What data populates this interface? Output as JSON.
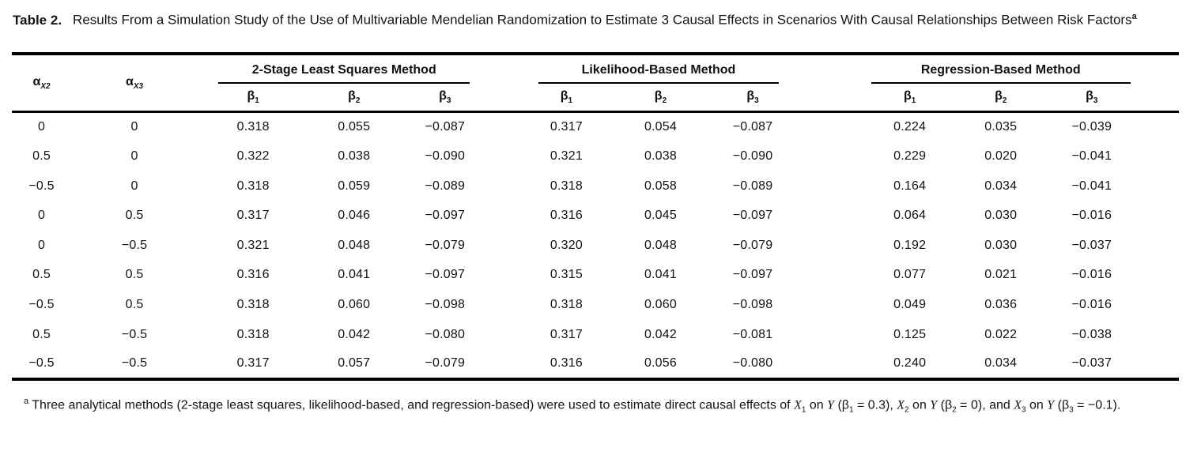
{
  "title": {
    "label": "Table 2.",
    "text": "Results From a Simulation Study of the Use of Multivariable Mendelian Randomization to Estimate 3 Causal Effects in Scenarios With Causal Relationships Between Risk Factors",
    "superscript": "a"
  },
  "header": {
    "alpha_x2": {
      "base": "α",
      "sub": "X2"
    },
    "alpha_x3": {
      "base": "α",
      "sub": "X3"
    },
    "groups": [
      {
        "label": "2-Stage Least Squares Method"
      },
      {
        "label": "Likelihood-Based Method"
      },
      {
        "label": "Regression-Based Method"
      }
    ],
    "betas": [
      {
        "base": "β",
        "sub": "1"
      },
      {
        "base": "β",
        "sub": "2"
      },
      {
        "base": "β",
        "sub": "3"
      }
    ]
  },
  "rows": [
    [
      "0",
      "0",
      "0.318",
      "0.055",
      "−0.087",
      "0.317",
      "0.054",
      "−0.087",
      "0.224",
      "0.035",
      "−0.039"
    ],
    [
      "0.5",
      "0",
      "0.322",
      "0.038",
      "−0.090",
      "0.321",
      "0.038",
      "−0.090",
      "0.229",
      "0.020",
      "−0.041"
    ],
    [
      "−0.5",
      "0",
      "0.318",
      "0.059",
      "−0.089",
      "0.318",
      "0.058",
      "−0.089",
      "0.164",
      "0.034",
      "−0.041"
    ],
    [
      "0",
      "0.5",
      "0.317",
      "0.046",
      "−0.097",
      "0.316",
      "0.045",
      "−0.097",
      "0.064",
      "0.030",
      "−0.016"
    ],
    [
      "0",
      "−0.5",
      "0.321",
      "0.048",
      "−0.079",
      "0.320",
      "0.048",
      "−0.079",
      "0.192",
      "0.030",
      "−0.037"
    ],
    [
      "0.5",
      "0.5",
      "0.316",
      "0.041",
      "−0.097",
      "0.315",
      "0.041",
      "−0.097",
      "0.077",
      "0.021",
      "−0.016"
    ],
    [
      "−0.5",
      "0.5",
      "0.318",
      "0.060",
      "−0.098",
      "0.318",
      "0.060",
      "−0.098",
      "0.049",
      "0.036",
      "−0.016"
    ],
    [
      "0.5",
      "−0.5",
      "0.318",
      "0.042",
      "−0.080",
      "0.317",
      "0.042",
      "−0.081",
      "0.125",
      "0.022",
      "−0.038"
    ],
    [
      "−0.5",
      "−0.5",
      "0.317",
      "0.057",
      "−0.079",
      "0.316",
      "0.056",
      "−0.080",
      "0.240",
      "0.034",
      "−0.037"
    ]
  ],
  "footnote": {
    "segments": [
      {
        "style": "sup",
        "text": "a"
      },
      {
        "style": "normal",
        "text": " Three analytical methods (2-stage least squares, likelihood-based, and regression-based) were used to estimate direct causal effects of "
      },
      {
        "style": "italic",
        "text": "X"
      },
      {
        "style": "sub",
        "text": "1"
      },
      {
        "style": "normal",
        "text": " on "
      },
      {
        "style": "italic",
        "text": "Y"
      },
      {
        "style": "normal",
        "text": " (β"
      },
      {
        "style": "sub",
        "text": "1"
      },
      {
        "style": "normal",
        "text": " = 0.3), "
      },
      {
        "style": "italic",
        "text": "X"
      },
      {
        "style": "sub",
        "text": "2"
      },
      {
        "style": "normal",
        "text": " on "
      },
      {
        "style": "italic",
        "text": "Y"
      },
      {
        "style": "normal",
        "text": " (β"
      },
      {
        "style": "sub",
        "text": "2"
      },
      {
        "style": "normal",
        "text": " = 0), and "
      },
      {
        "style": "italic",
        "text": "X"
      },
      {
        "style": "sub",
        "text": "3"
      },
      {
        "style": "normal",
        "text": " on "
      },
      {
        "style": "italic",
        "text": "Y"
      },
      {
        "style": "normal",
        "text": " (β"
      },
      {
        "style": "sub",
        "text": "3"
      },
      {
        "style": "normal",
        "text": " = −0.1)."
      }
    ]
  },
  "chart_data": {
    "type": "table",
    "title": "Table 2. Results From a Simulation Study of the Use of Multivariable Mendelian Randomization to Estimate 3 Causal Effects in Scenarios With Causal Relationships Between Risk Factors",
    "column_groups": [
      "",
      "",
      "2-Stage Least Squares Method",
      "2-Stage Least Squares Method",
      "2-Stage Least Squares Method",
      "Likelihood-Based Method",
      "Likelihood-Based Method",
      "Likelihood-Based Method",
      "Regression-Based Method",
      "Regression-Based Method",
      "Regression-Based Method"
    ],
    "columns": [
      "α_X2",
      "α_X3",
      "β1",
      "β2",
      "β3",
      "β1",
      "β2",
      "β3",
      "β1",
      "β2",
      "β3"
    ],
    "rows": [
      [
        0,
        0,
        0.318,
        0.055,
        -0.087,
        0.317,
        0.054,
        -0.087,
        0.224,
        0.035,
        -0.039
      ],
      [
        0.5,
        0,
        0.322,
        0.038,
        -0.09,
        0.321,
        0.038,
        -0.09,
        0.229,
        0.02,
        -0.041
      ],
      [
        -0.5,
        0,
        0.318,
        0.059,
        -0.089,
        0.318,
        0.058,
        -0.089,
        0.164,
        0.034,
        -0.041
      ],
      [
        0,
        0.5,
        0.317,
        0.046,
        -0.097,
        0.316,
        0.045,
        -0.097,
        0.064,
        0.03,
        -0.016
      ],
      [
        0,
        -0.5,
        0.321,
        0.048,
        -0.079,
        0.32,
        0.048,
        -0.079,
        0.192,
        0.03,
        -0.037
      ],
      [
        0.5,
        0.5,
        0.316,
        0.041,
        -0.097,
        0.315,
        0.041,
        -0.097,
        0.077,
        0.021,
        -0.016
      ],
      [
        -0.5,
        0.5,
        0.318,
        0.06,
        -0.098,
        0.318,
        0.06,
        -0.098,
        0.049,
        0.036,
        -0.016
      ],
      [
        0.5,
        -0.5,
        0.318,
        0.042,
        -0.08,
        0.317,
        0.042,
        -0.081,
        0.125,
        0.022,
        -0.038
      ],
      [
        -0.5,
        -0.5,
        0.317,
        0.057,
        -0.079,
        0.316,
        0.056,
        -0.08,
        0.24,
        0.034,
        -0.037
      ]
    ]
  }
}
